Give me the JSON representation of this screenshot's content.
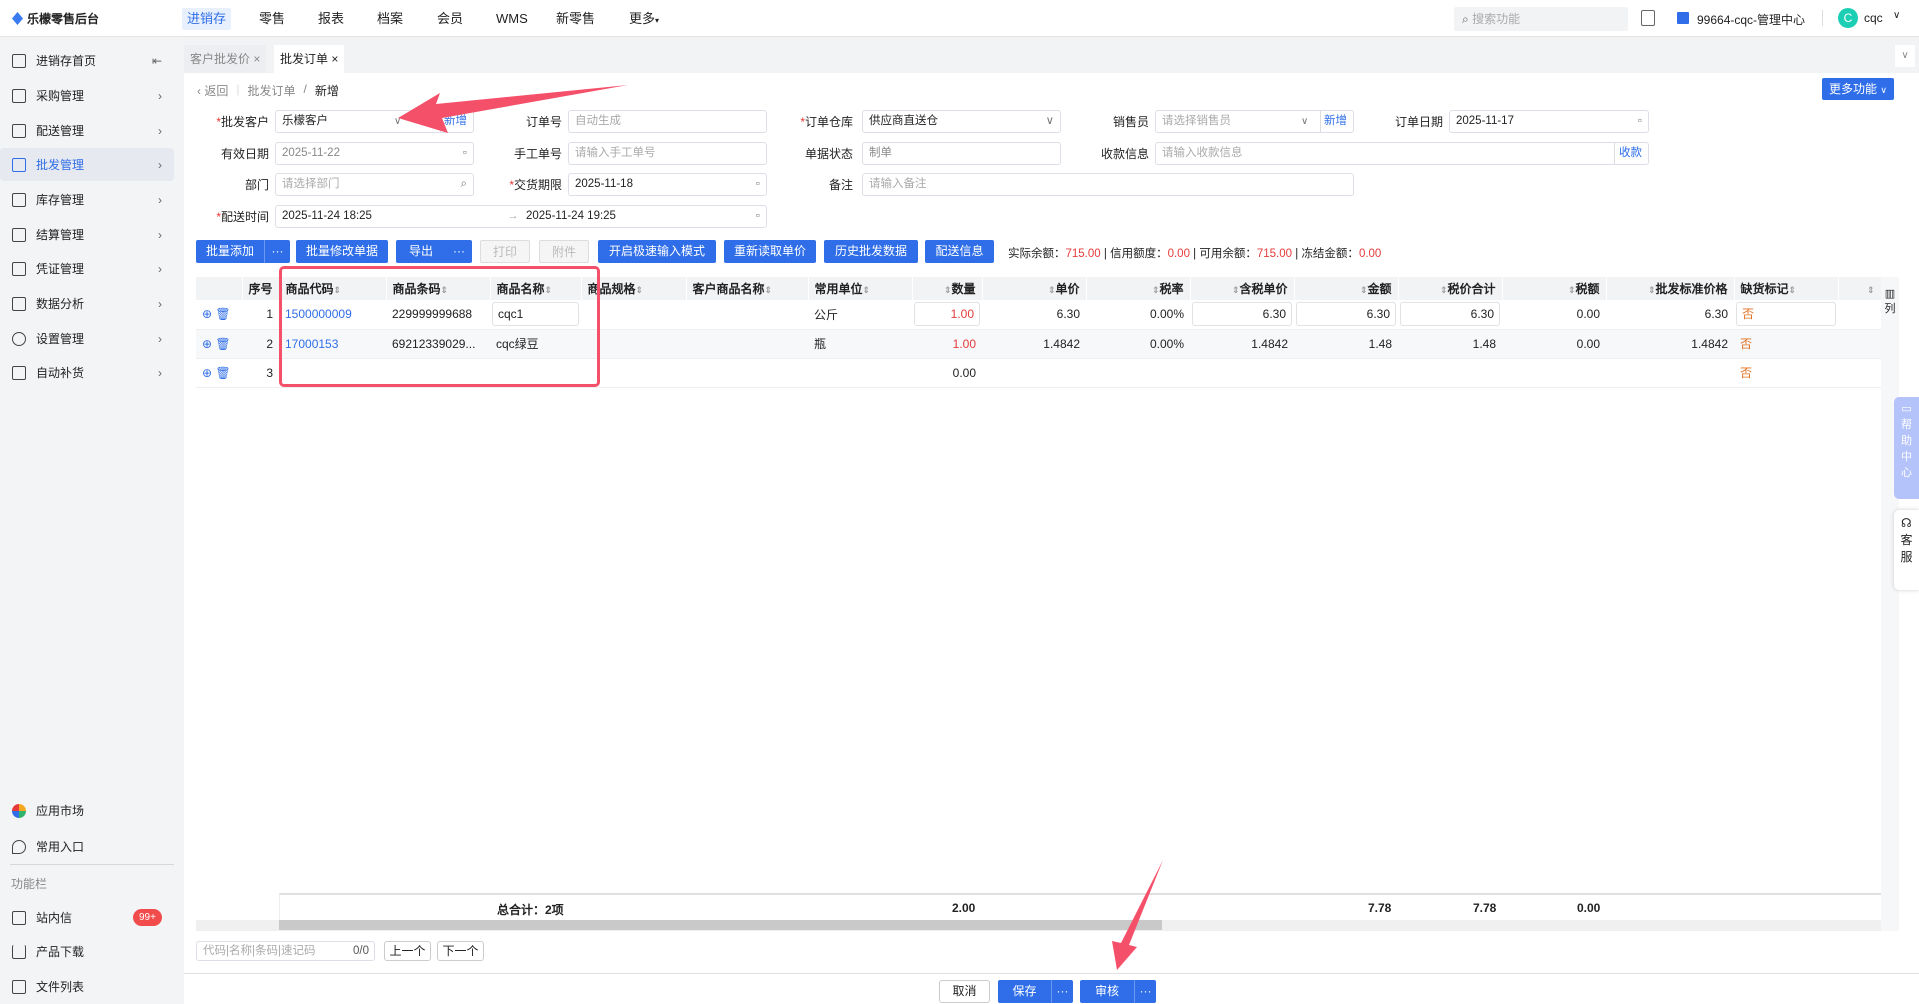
{
  "app": {
    "title": "乐檬零售后台"
  },
  "topnav": [
    {
      "label": "进销存",
      "active": true
    },
    {
      "label": "零售"
    },
    {
      "label": "报表"
    },
    {
      "label": "档案"
    },
    {
      "label": "会员"
    },
    {
      "label": "WMS"
    },
    {
      "label": "新零售"
    },
    {
      "label": "更多"
    }
  ],
  "header": {
    "search_placeholder": "搜索功能",
    "store": "99664-cqc-管理中心",
    "user": "cqc",
    "avatar_letter": "C"
  },
  "sidebar": {
    "items": [
      {
        "label": "进销存首页"
      },
      {
        "label": "采购管理"
      },
      {
        "label": "配送管理"
      },
      {
        "label": "批发管理",
        "active": true
      },
      {
        "label": "库存管理"
      },
      {
        "label": "结算管理"
      },
      {
        "label": "凭证管理"
      },
      {
        "label": "数据分析"
      },
      {
        "label": "设置管理"
      },
      {
        "label": "自动补货"
      }
    ],
    "bottom": [
      {
        "label": "应用市场"
      },
      {
        "label": "常用入口"
      }
    ],
    "section": "功能栏",
    "tools": [
      {
        "label": "站内信",
        "badge": "99+"
      },
      {
        "label": "产品下载"
      },
      {
        "label": "文件列表"
      }
    ]
  },
  "tabs": [
    {
      "label": "客户批发价"
    },
    {
      "label": "批发订单",
      "active": true
    }
  ],
  "breadcrumb": {
    "back": "返回",
    "parent": "批发订单",
    "current": "新增"
  },
  "more_functions": "更多功能",
  "form": {
    "customer": {
      "label": "批发客户",
      "value": "乐檬客户",
      "add": "新增"
    },
    "order_no": {
      "label": "订单号",
      "placeholder": "自动生成"
    },
    "warehouse": {
      "label": "订单仓库",
      "value": "供应商直送仓"
    },
    "salesman": {
      "label": "销售员",
      "placeholder": "请选择销售员",
      "add": "新增"
    },
    "order_date": {
      "label": "订单日期",
      "value": "2025-11-17"
    },
    "valid_date": {
      "label": "有效日期",
      "value": "2025-11-22"
    },
    "manual_no": {
      "label": "手工单号",
      "placeholder": "请输入手工单号"
    },
    "status": {
      "label": "单据状态",
      "value": "制单"
    },
    "payment": {
      "label": "收款信息",
      "placeholder": "请输入收款信息",
      "action": "收款"
    },
    "dept": {
      "label": "部门",
      "placeholder": "请选择部门"
    },
    "delivery_deadline": {
      "label": "交货期限",
      "value": "2025-11-18"
    },
    "remark": {
      "label": "备注",
      "placeholder": "请输入备注"
    },
    "delivery_time": {
      "label": "配送时间",
      "start": "2025-11-24 18:25",
      "end": "2025-11-24 19:25"
    }
  },
  "toolbar": {
    "batch_add": "批量添加",
    "batch_edit": "批量修改单据",
    "export": "导出",
    "print": "打印",
    "attach": "附件",
    "fast_mode": "开启极速输入模式",
    "reload_price": "重新读取单价",
    "history": "历史批发数据",
    "delivery_info": "配送信息",
    "more": "···"
  },
  "balance": {
    "actual_label": "实际余额：",
    "actual": "715.00",
    "credit_label": "信用额度：",
    "credit": "0.00",
    "available_label": "可用余额：",
    "available": "715.00",
    "frozen_label": "冻结金额：",
    "frozen": "0.00"
  },
  "table": {
    "columns": [
      "序号",
      "商品代码",
      "商品条码",
      "商品名称",
      "商品规格",
      "客户商品名称",
      "常用单位",
      "数量",
      "单价",
      "税率",
      "含税单价",
      "金额",
      "税价合计",
      "税额",
      "批发标准价格",
      "缺货标记"
    ],
    "col_setting": "列",
    "rows": [
      {
        "seq": "1",
        "code": "1500000009",
        "barcode": "229999999688",
        "name": "cqc1",
        "spec": "",
        "cust_name": "",
        "unit": "公斤",
        "qty": "1.00",
        "price": "6.30",
        "rate": "0.00%",
        "tax_price": "6.30",
        "amount": "6.30",
        "total": "6.30",
        "tax": "0.00",
        "std_price": "6.30",
        "out_of_stock": "否"
      },
      {
        "seq": "2",
        "code": "17000153",
        "barcode": "69212339029...",
        "name": "cqc绿豆",
        "spec": "",
        "cust_name": "",
        "unit": "瓶",
        "qty": "1.00",
        "price": "1.4842",
        "rate": "0.00%",
        "tax_price": "1.4842",
        "amount": "1.48",
        "total": "1.48",
        "tax": "0.00",
        "std_price": "1.4842",
        "out_of_stock": "否"
      },
      {
        "seq": "3",
        "code": "",
        "barcode": "",
        "name": "",
        "spec": "",
        "cust_name": "",
        "unit": "",
        "qty": "0.00",
        "price": "",
        "rate": "",
        "tax_price": "",
        "amount": "",
        "total": "",
        "tax": "",
        "std_price": "",
        "out_of_stock": "否"
      }
    ],
    "summary": {
      "label": "总合计：2项",
      "qty": "2.00",
      "amount": "7.78",
      "total": "7.78",
      "tax": "0.00"
    }
  },
  "finder": {
    "placeholder": "代码|名称|条码|速记码",
    "count": "0/0",
    "prev": "上一个",
    "next": "下一个"
  },
  "side_float": {
    "help": "帮助中心",
    "service": "客服"
  },
  "footer": {
    "cancel": "取消",
    "save": "保存",
    "audit": "审核",
    "more": "···"
  },
  "colors": {
    "primary": "#2f6ee8",
    "annotation": "#f5506a",
    "negative": "#e63a3a",
    "flag": "#e07020"
  }
}
